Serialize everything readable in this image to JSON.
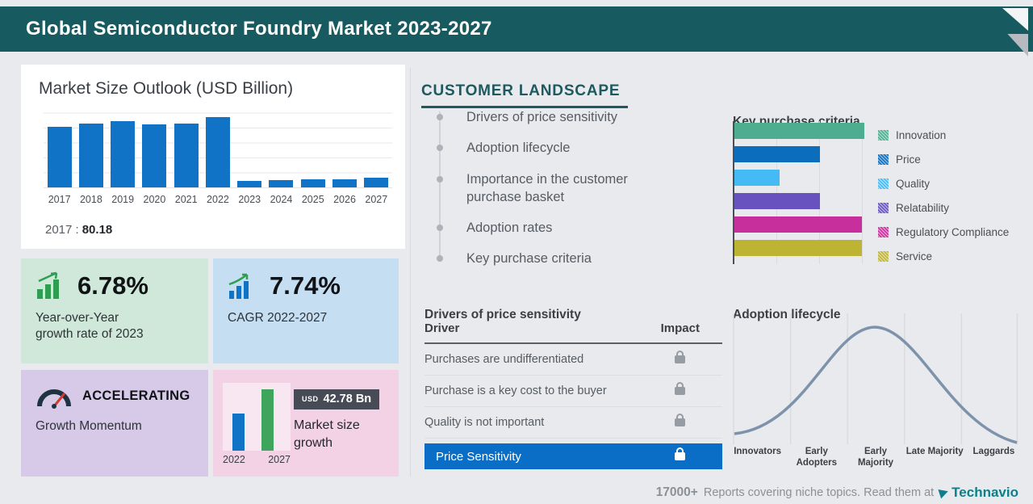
{
  "header": {
    "title": "Global Semiconductor Foundry Market 2023-2027"
  },
  "market_size": {
    "title": "Market Size Outlook (USD Billion)",
    "note_year": "2017 :",
    "note_value": "80.18"
  },
  "cards": {
    "yoy": {
      "value": "6.78%",
      "line1": "Year-over-Year",
      "line2": "growth rate of 2023"
    },
    "cagr": {
      "value": "7.74%",
      "label": "CAGR 2022-2027"
    },
    "momentum": {
      "title": "ACCELERATING",
      "label": "Growth Momentum"
    },
    "growth": {
      "currency": "USD",
      "amount": "42.78 Bn",
      "label": "Market size growth"
    }
  },
  "customer_landscape": {
    "title": "CUSTOMER LANDSCAPE",
    "items": [
      "Drivers of price sensitivity",
      "Adoption lifecycle",
      "Importance in the customer purchase basket",
      "Adoption rates",
      "Key purchase criteria"
    ]
  },
  "key_purchase": {
    "title": "Key purchase criteria"
  },
  "price_table": {
    "title": "Drivers of price sensitivity",
    "col_driver": "Driver",
    "col_impact": "Impact",
    "rows": [
      "Purchases are undifferentiated",
      "Purchase is a key cost to the buyer",
      "Quality is not important"
    ],
    "highlight": "Price Sensitivity"
  },
  "adoption": {
    "title": "Adoption lifecycle"
  },
  "footer": {
    "count": "17000+",
    "text": "Reports covering niche topics. Read them at",
    "brand": "Technavio"
  },
  "colors": {
    "header_teal": "#175a5f",
    "accent_blue": "#1173c5",
    "highlight_blue": "#0a6ec6",
    "brand_teal": "#0e7f89"
  },
  "chart_data": [
    {
      "type": "bar",
      "title": "Market Size Outlook (USD Billion)",
      "categories": [
        "2017",
        "2018",
        "2019",
        "2020",
        "2021",
        "2022",
        "2023",
        "2024",
        "2025",
        "2026",
        "2027"
      ],
      "values": [
        80.18,
        84.5,
        87.5,
        83.5,
        84.5,
        92.5,
        9,
        10,
        11,
        11,
        13
      ],
      "ylim": [
        0,
        100
      ],
      "bar_color": "#1173c5",
      "note": "Only 2017 labeled (80.18); 2023-2027 bars shown truncated in source"
    },
    {
      "type": "bar",
      "orientation": "horizontal",
      "title": "Key purchase criteria",
      "categories": [
        "Innovation",
        "Price",
        "Quality",
        "Relatability",
        "Regulatory Compliance",
        "Service"
      ],
      "values": [
        100,
        66,
        35,
        66,
        98,
        98
      ],
      "value_note": "relative bar lengths, max = 100 (no axis labels shown)",
      "colors": [
        "#4cae8f",
        "#0a6ebd",
        "#45bbf5",
        "#6852bf",
        "#c72f9c",
        "#beb433"
      ],
      "legend_position": "right"
    },
    {
      "type": "line",
      "title": "Adoption lifecycle",
      "categories": [
        "Innovators",
        "Early Adopters",
        "Early Majority",
        "Late Majority",
        "Laggards"
      ],
      "values": [
        5,
        35,
        100,
        35,
        2
      ],
      "description": "bell curve, no y-axis scale shown",
      "line_color": "#7e93ab"
    },
    {
      "type": "bar",
      "title": "Market size growth",
      "categories": [
        "2022",
        "2027"
      ],
      "values": [
        46,
        76
      ],
      "value_note": "relative bar heights",
      "annotation": "USD 42.78 Bn",
      "colors": [
        "#1173c5",
        "#3fa45c"
      ]
    }
  ]
}
